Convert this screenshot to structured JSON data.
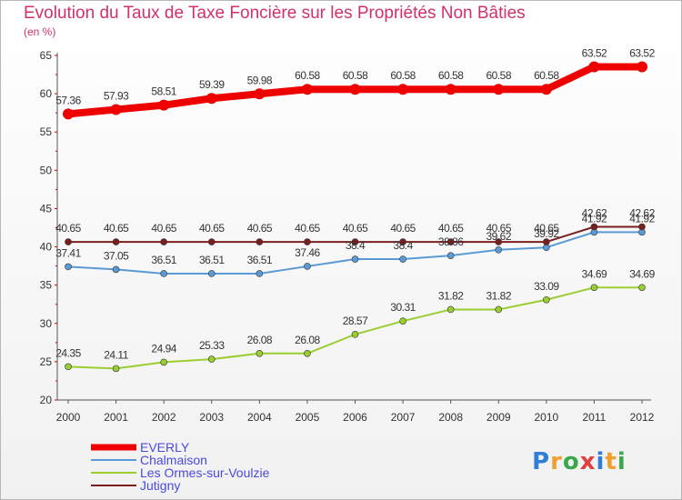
{
  "chart_data": {
    "type": "line",
    "title": "Evolution du Taux de Taxe Foncière sur les Propriétés Non Bâties",
    "ylabel": "(en %)",
    "xlabel": "",
    "x": [
      "2000",
      "2001",
      "2002",
      "2003",
      "2004",
      "2005",
      "2006",
      "2007",
      "2008",
      "2009",
      "2010",
      "2011",
      "2012"
    ],
    "ylim": [
      20,
      65
    ],
    "yticks": [
      "20",
      "25",
      "30",
      "35",
      "40",
      "45",
      "50",
      "55",
      "60",
      "65"
    ],
    "legend_position": "bottom-left",
    "grid": false,
    "series": [
      {
        "name": "EVERLY",
        "color": "#ee0000",
        "values": [
          57.36,
          57.93,
          58.51,
          59.39,
          59.98,
          60.58,
          60.58,
          60.58,
          60.58,
          60.58,
          60.58,
          63.52,
          63.52
        ],
        "labels": [
          "57.36",
          "57.93",
          "58.51",
          "59.39",
          "59.98",
          "60.58",
          "60.58",
          "60.58",
          "60.58",
          "60.58",
          "60.58",
          "63.52",
          "63.52"
        ]
      },
      {
        "name": "Chalmaison",
        "color": "#5b9bd5",
        "values": [
          37.41,
          37.05,
          36.51,
          36.51,
          36.51,
          37.46,
          38.4,
          38.4,
          38.86,
          39.62,
          39.92,
          41.92,
          41.92
        ],
        "labels": [
          "37.41",
          "37.05",
          "36.51",
          "36.51",
          "36.51",
          "37.46",
          "38.4",
          "38.4",
          "38.86",
          "39.62",
          "39.92",
          "41.92",
          "41.92"
        ]
      },
      {
        "name": "Les Ormes-sur-Voulzie",
        "color": "#9acd32",
        "values": [
          24.35,
          24.11,
          24.94,
          25.33,
          26.08,
          26.08,
          28.57,
          30.31,
          31.82,
          31.82,
          33.09,
          34.69,
          34.69
        ],
        "labels": [
          "24.35",
          "24.11",
          "24.94",
          "25.33",
          "26.08",
          "26.08",
          "28.57",
          "30.31",
          "31.82",
          "31.82",
          "33.09",
          "34.69",
          "34.69"
        ]
      },
      {
        "name": "Jutigny",
        "color": "#7b1e1e",
        "values": [
          40.65,
          40.65,
          40.65,
          40.65,
          40.65,
          40.65,
          40.65,
          40.65,
          40.65,
          40.65,
          40.65,
          42.62,
          42.62
        ],
        "labels": [
          "40.65",
          "40.65",
          "40.65",
          "40.65",
          "40.65",
          "40.65",
          "40.65",
          "40.65",
          "40.65",
          "40.65",
          "40.65",
          "42.62",
          "42.62"
        ]
      }
    ]
  },
  "logo": {
    "letters": [
      "P",
      "r",
      "o",
      "x",
      "i",
      "t",
      "i"
    ],
    "colors": [
      "#2f7fd8",
      "#f0a030",
      "#3aa84a",
      "#e04040",
      "#2f7fd8",
      "#f0a030",
      "#3aa84a"
    ]
  }
}
